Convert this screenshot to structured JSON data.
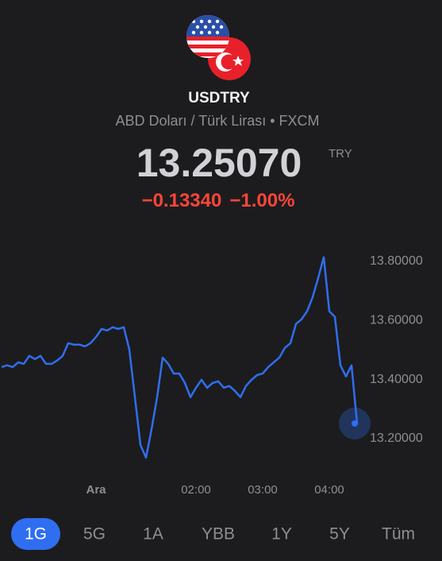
{
  "header": {
    "symbol": "USDTRY",
    "description": "ABD Doları / Türk Lirası • FXCM",
    "price": "13.25070",
    "currency": "TRY",
    "change": "−0.13340",
    "change_percent": "−1.00%"
  },
  "chart_data": {
    "type": "line",
    "categories": [
      null,
      null,
      null,
      null,
      null,
      null,
      null,
      null,
      null,
      null,
      null,
      null,
      null,
      null,
      null,
      null,
      null,
      "Ara",
      null,
      null,
      null,
      null,
      null,
      null,
      null,
      null,
      null,
      null,
      null,
      null,
      null,
      null,
      null,
      null,
      null,
      "02:00",
      null,
      null,
      null,
      null,
      null,
      null,
      null,
      null,
      null,
      null,
      null,
      "03:00",
      null,
      null,
      null,
      null,
      null,
      null,
      null,
      null,
      null,
      null,
      null,
      "04:00",
      null,
      null,
      null,
      null,
      null
    ],
    "series": [
      {
        "color": "#2f6ef0",
        "values": [
          13.442,
          13.448,
          13.442,
          13.458,
          13.453,
          13.48,
          13.469,
          13.48,
          13.453,
          13.453,
          13.464,
          13.48,
          13.523,
          13.518,
          13.518,
          13.512,
          13.523,
          13.544,
          13.571,
          13.566,
          13.577,
          13.571,
          13.577,
          13.501,
          13.34,
          13.178,
          13.135,
          13.232,
          13.34,
          13.474,
          13.453,
          13.42,
          13.42,
          13.388,
          13.34,
          13.372,
          13.399,
          13.372,
          13.388,
          13.394,
          13.372,
          13.378,
          13.361,
          13.34,
          13.378,
          13.399,
          13.415,
          13.42,
          13.442,
          13.458,
          13.474,
          13.507,
          13.523,
          13.588,
          13.604,
          13.631,
          13.679,
          13.744,
          13.814,
          13.631,
          13.612,
          13.448,
          13.41,
          13.448,
          13.2507
        ]
      }
    ],
    "ylim": [
      13.1,
      13.9
    ],
    "yticks": [
      {
        "value": 13.2,
        "label": "13.20000"
      },
      {
        "value": 13.4,
        "label": "13.40000"
      },
      {
        "value": 13.6,
        "label": "13.60000"
      },
      {
        "value": 13.8,
        "label": "13.80000"
      }
    ]
  },
  "ranges": [
    "1G",
    "5G",
    "1A",
    "YBB",
    "1Y",
    "5Y",
    "Tüm"
  ],
  "selected_range": "1G"
}
